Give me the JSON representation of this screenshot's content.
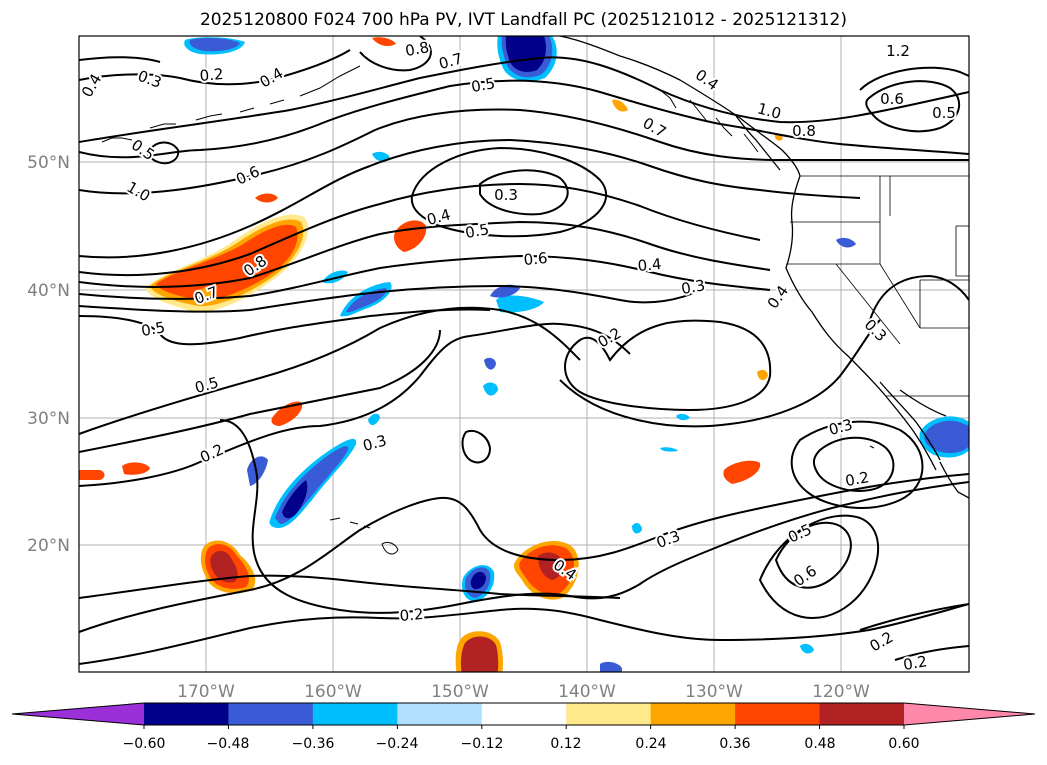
{
  "title": "2025120800 F024 700 hPa PV, IVT Landfall PC (2025121012 - 2025121312)",
  "lat_labels": [
    "50°N",
    "40°N",
    "30°N",
    "20°N"
  ],
  "lon_labels": [
    "170°W",
    "160°W",
    "150°W",
    "140°W",
    "130°W",
    "120°W"
  ],
  "contour_labels": [
    {
      "text": "0.3"
    },
    {
      "text": "0.2"
    },
    {
      "text": "0.4"
    },
    {
      "text": "0.8"
    },
    {
      "text": "0.7"
    },
    {
      "text": "0.5"
    },
    {
      "text": "0.4"
    },
    {
      "text": "1.2"
    },
    {
      "text": "0.4"
    },
    {
      "text": "1.0"
    },
    {
      "text": "0.8"
    },
    {
      "text": "0.6"
    },
    {
      "text": "0.5"
    },
    {
      "text": "0.7"
    },
    {
      "text": "0.5"
    },
    {
      "text": "0.6"
    },
    {
      "text": "1.0"
    },
    {
      "text": "0.3"
    },
    {
      "text": "0.4"
    },
    {
      "text": "0.5"
    },
    {
      "text": "0.6"
    },
    {
      "text": "0.4"
    },
    {
      "text": "0.3"
    },
    {
      "text": "0.8"
    },
    {
      "text": "0.7"
    },
    {
      "text": "0.5"
    },
    {
      "text": "0.4"
    },
    {
      "text": "0.3"
    },
    {
      "text": "0.2"
    },
    {
      "text": "0.5"
    },
    {
      "text": "0.2"
    },
    {
      "text": "0.3"
    },
    {
      "text": "0.3"
    },
    {
      "text": "0.2"
    },
    {
      "text": "0.3"
    },
    {
      "text": "0.4"
    },
    {
      "text": "0.5"
    },
    {
      "text": "0.6"
    },
    {
      "text": "0.2"
    },
    {
      "text": "0.2"
    },
    {
      "text": "0.2"
    }
  ],
  "colorbar": {
    "tick_labels": [
      "−0.60",
      "−0.48",
      "−0.36",
      "−0.24",
      "−0.12",
      "0.12",
      "0.24",
      "0.36",
      "0.48",
      "0.60"
    ],
    "colors": {
      "under": "#9b30d9",
      "bins": [
        "#00008b",
        "#3a5bd6",
        "#00bfff",
        "#b0e0ff",
        "#ffffff",
        "#ffe98a",
        "#ffa500",
        "#ff4500",
        "#b22222"
      ],
      "over": "#ff88aa"
    }
  },
  "colors": {
    "contour": "#000000",
    "coast": "#000000",
    "grid": "#b0b0b0",
    "tick_text": "#808080"
  }
}
